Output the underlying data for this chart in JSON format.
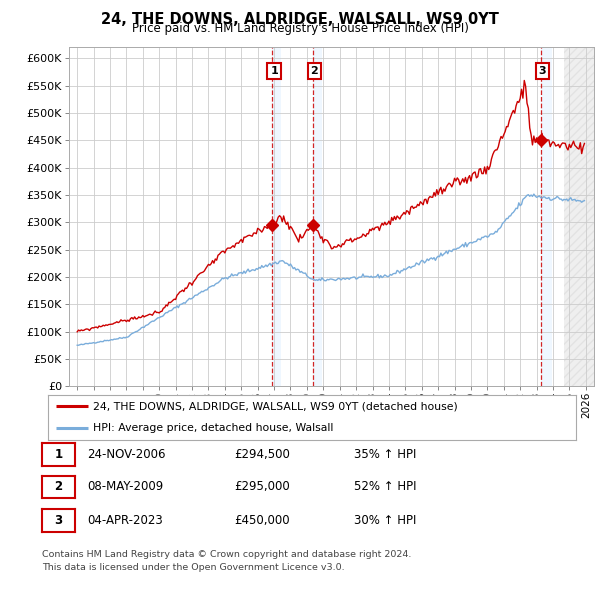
{
  "title": "24, THE DOWNS, ALDRIDGE, WALSALL, WS9 0YT",
  "subtitle": "Price paid vs. HM Land Registry's House Price Index (HPI)",
  "legend_line1": "24, THE DOWNS, ALDRIDGE, WALSALL, WS9 0YT (detached house)",
  "legend_line2": "HPI: Average price, detached house, Walsall",
  "table_rows": [
    {
      "num": "1",
      "date": "24-NOV-2006",
      "price": "£294,500",
      "hpi": "35% ↑ HPI"
    },
    {
      "num": "2",
      "date": "08-MAY-2009",
      "price": "£295,000",
      "hpi": "52% ↑ HPI"
    },
    {
      "num": "3",
      "date": "04-APR-2023",
      "price": "£450,000",
      "hpi": "30% ↑ HPI"
    }
  ],
  "footnote1": "Contains HM Land Registry data © Crown copyright and database right 2024.",
  "footnote2": "This data is licensed under the Open Government Licence v3.0.",
  "sale_dates_num": [
    2006.9,
    2009.35,
    2023.25
  ],
  "sale_prices": [
    294500,
    295000,
    450000
  ],
  "red_color": "#cc0000",
  "blue_color": "#7aaddb",
  "shade_color": "#ddeeff",
  "background_color": "#ffffff",
  "grid_color": "#cccccc",
  "ylim": [
    0,
    620000
  ],
  "yticks": [
    0,
    50000,
    100000,
    150000,
    200000,
    250000,
    300000,
    350000,
    400000,
    450000,
    500000,
    550000,
    600000
  ],
  "xlim_start": 1994.5,
  "xlim_end": 2026.5,
  "xtick_years": [
    1995,
    1996,
    1997,
    1998,
    1999,
    2000,
    2001,
    2002,
    2003,
    2004,
    2005,
    2006,
    2007,
    2008,
    2009,
    2010,
    2011,
    2012,
    2013,
    2014,
    2015,
    2016,
    2017,
    2018,
    2019,
    2020,
    2021,
    2022,
    2023,
    2024,
    2025,
    2026
  ]
}
